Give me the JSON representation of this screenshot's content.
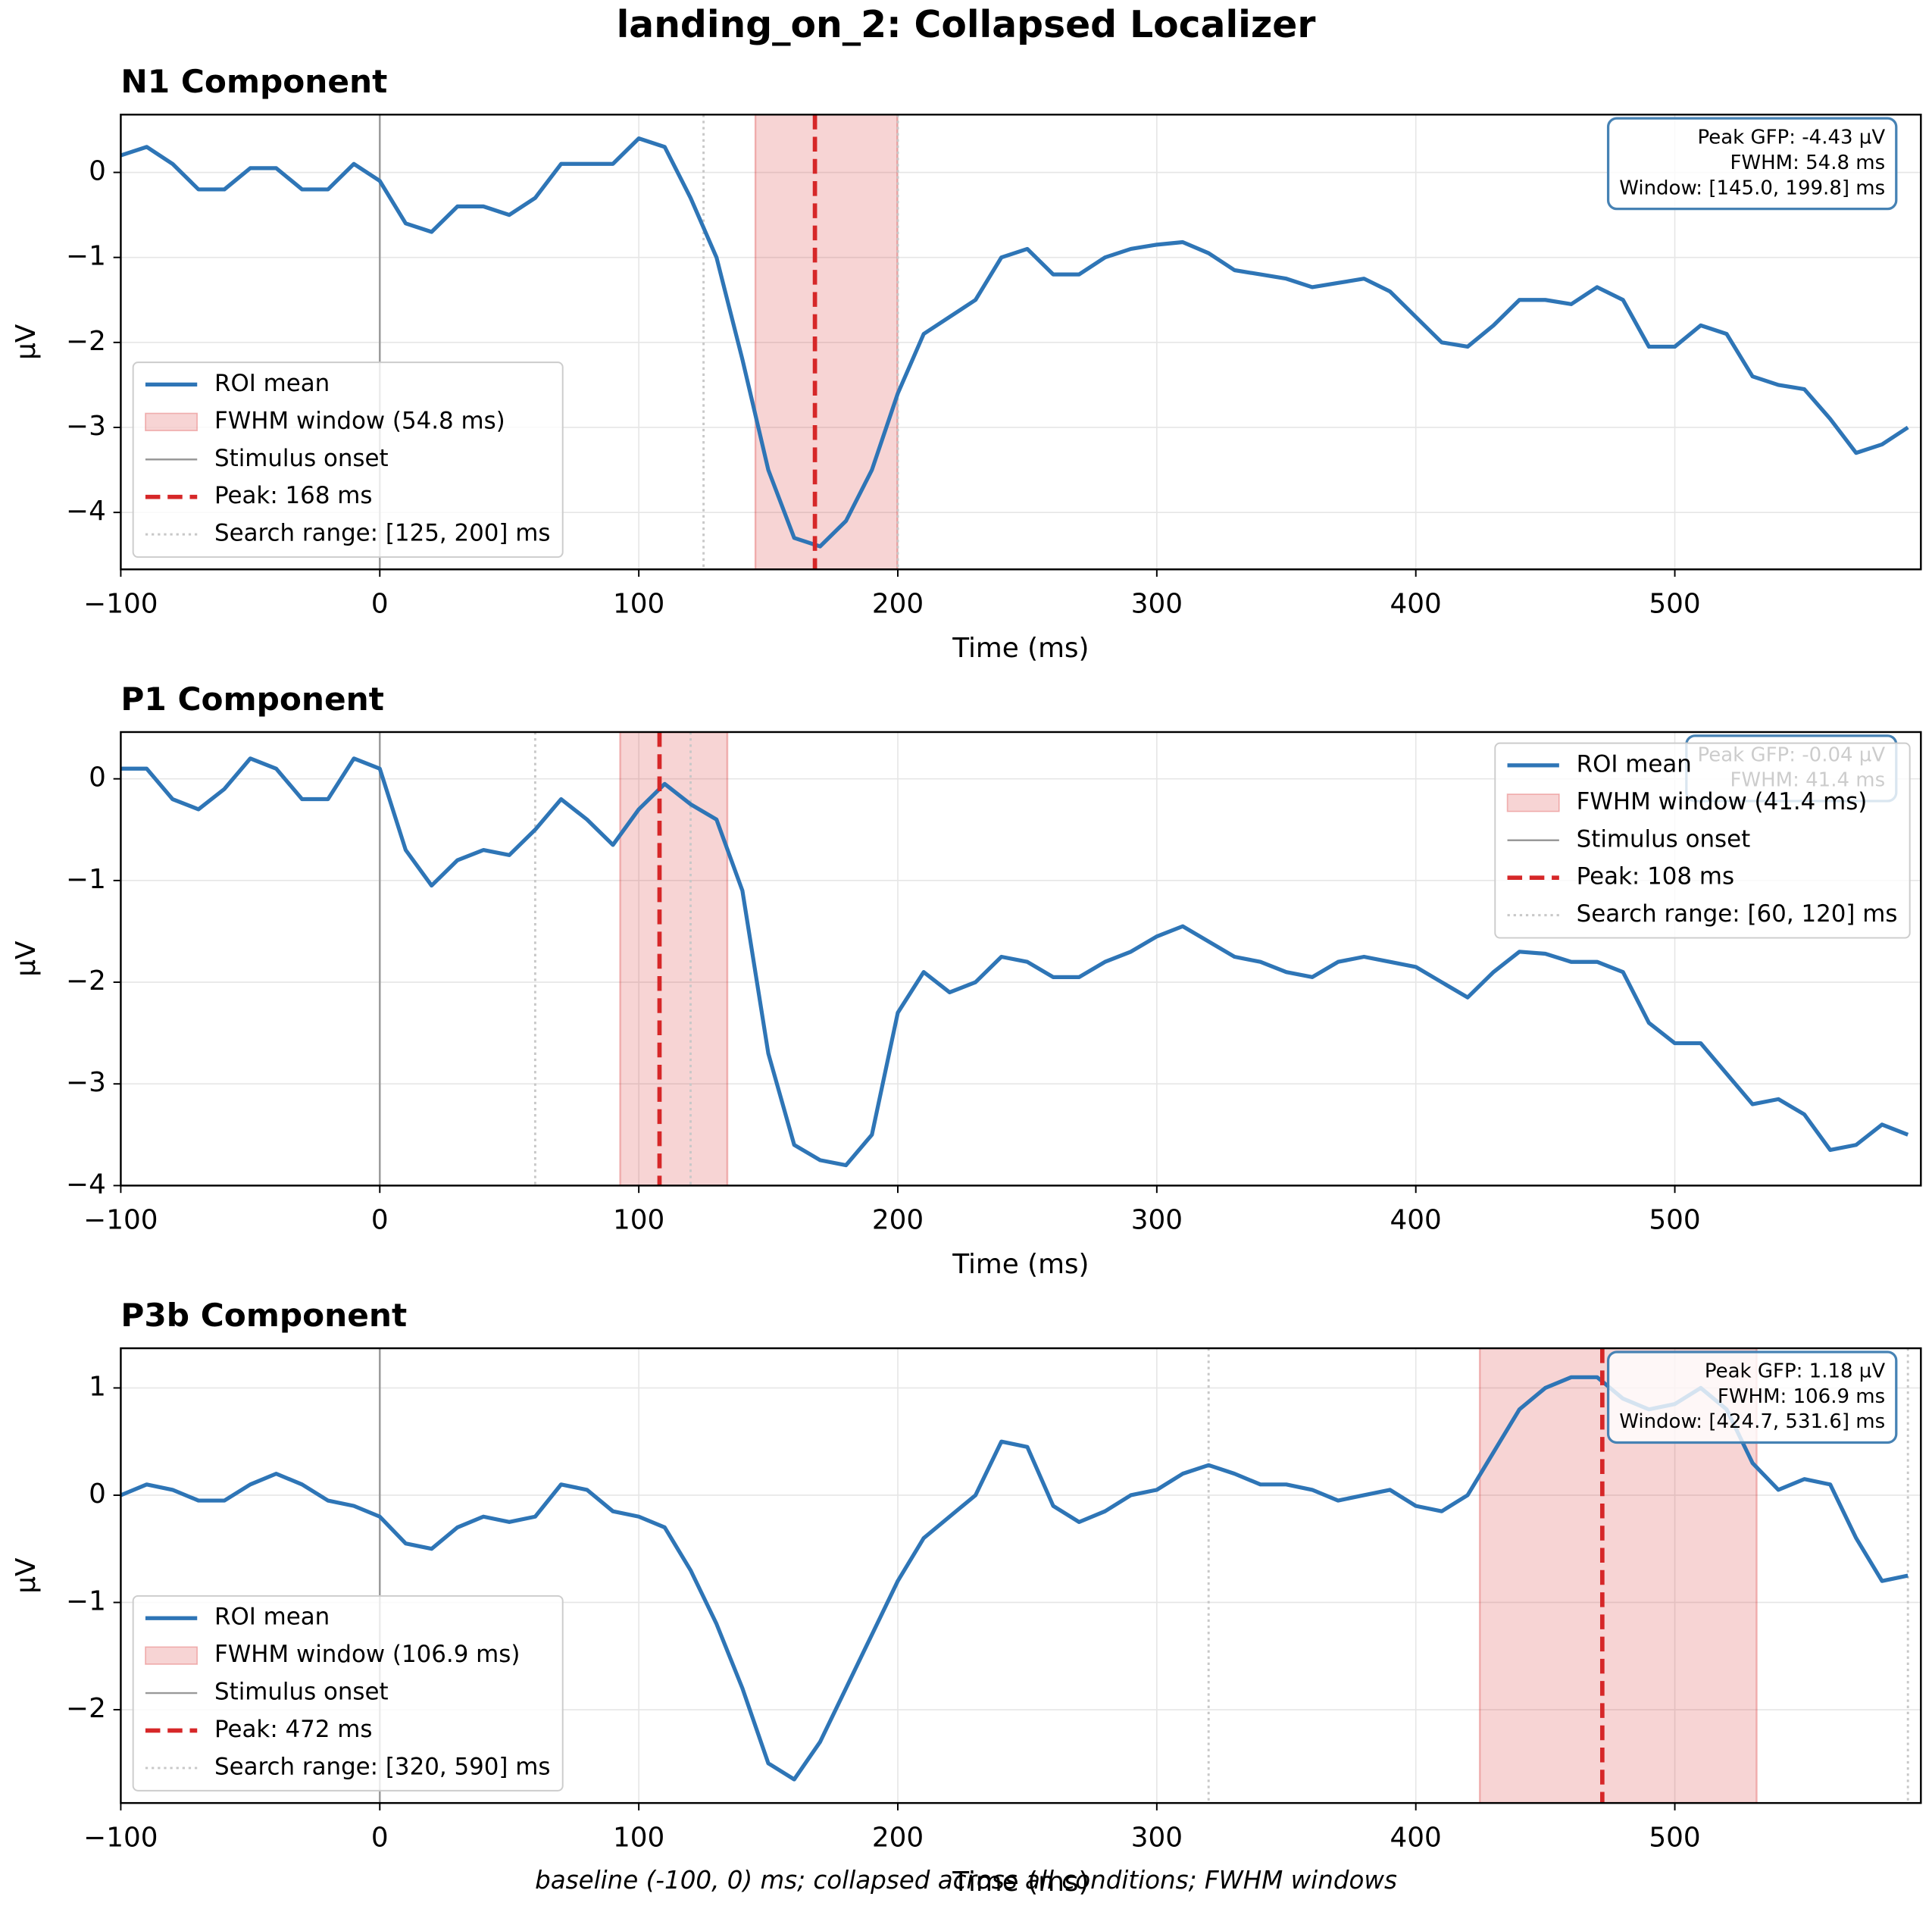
{
  "title": "landing_on_2: Collapsed Localizer",
  "footnote": "baseline (-100, 0) ms; collapsed across all conditions; FWHM windows",
  "chart_data": [
    {
      "type": "line",
      "title": "N1 Component",
      "xlabel": "Time (ms)",
      "ylabel": "µV",
      "grid": true,
      "legend_position": "lower left",
      "x": [
        -100,
        -90,
        -80,
        -70,
        -60,
        -50,
        -40,
        -30,
        -20,
        -10,
        0,
        10,
        20,
        30,
        40,
        50,
        60,
        70,
        80,
        90,
        100,
        110,
        120,
        130,
        140,
        150,
        160,
        170,
        180,
        190,
        200,
        210,
        220,
        230,
        240,
        250,
        260,
        270,
        280,
        290,
        300,
        310,
        320,
        330,
        340,
        350,
        360,
        370,
        380,
        390,
        400,
        410,
        420,
        430,
        440,
        450,
        460,
        470,
        480,
        490,
        500,
        510,
        520,
        530,
        540,
        550,
        560,
        570,
        580,
        590
      ],
      "series": [
        {
          "name": "ROI mean",
          "color": "#2e75b6",
          "values": [
            0.2,
            0.3,
            0.1,
            -0.2,
            -0.2,
            0.05,
            0.05,
            -0.2,
            -0.2,
            0.1,
            -0.1,
            -0.6,
            -0.7,
            -0.4,
            -0.4,
            -0.5,
            -0.3,
            0.1,
            0.1,
            0.1,
            0.4,
            0.3,
            -0.3,
            -1.0,
            -2.2,
            -3.5,
            -4.3,
            -4.4,
            -4.1,
            -3.5,
            -2.6,
            -1.9,
            -1.7,
            -1.5,
            -1.0,
            -0.9,
            -1.2,
            -1.2,
            -1.0,
            -0.9,
            -0.85,
            -0.82,
            -0.95,
            -1.15,
            -1.2,
            -1.25,
            -1.35,
            -1.3,
            -1.25,
            -1.4,
            -1.7,
            -2.0,
            -2.05,
            -1.8,
            -1.5,
            -1.5,
            -1.55,
            -1.35,
            -1.5,
            -2.05,
            -2.05,
            -1.8,
            -1.9,
            -2.4,
            -2.5,
            -2.55,
            -2.9,
            -3.3,
            -3.2,
            -3.0
          ]
        }
      ],
      "xlim": [
        -100,
        595
      ],
      "ylim": [
        -4.67,
        0.68
      ],
      "xticks": [
        {
          "value": -100,
          "label": "−100"
        },
        0,
        100,
        200,
        300,
        400,
        500
      ],
      "yticks": [
        {
          "value": -4,
          "label": "−4"
        },
        {
          "value": -3,
          "label": "−3"
        },
        {
          "value": -2,
          "label": "−2"
        },
        {
          "value": -1,
          "label": "−1"
        },
        0
      ],
      "fwhm": {
        "name": "FWHM window (54.8 ms)",
        "range": [
          145.0,
          199.8
        ],
        "color": "#d62728"
      },
      "onset": {
        "name": "Stimulus onset",
        "value": 0,
        "color": "#999999"
      },
      "peak": {
        "name": "Peak: 168 ms",
        "value": 168,
        "color": "#d62728"
      },
      "search": {
        "name": "Search range: [125, 200] ms",
        "range": [
          125,
          200
        ],
        "color": "#c8c8c8"
      },
      "info_box": [
        "Peak GFP: -4.43 µV",
        "FWHM: 54.8 ms",
        "Window: [145.0, 199.8] ms"
      ]
    },
    {
      "type": "line",
      "title": "P1 Component",
      "xlabel": "Time (ms)",
      "ylabel": "µV",
      "grid": true,
      "legend_position": "upper right",
      "x": [
        -100,
        -90,
        -80,
        -70,
        -60,
        -50,
        -40,
        -30,
        -20,
        -10,
        0,
        10,
        20,
        30,
        40,
        50,
        60,
        70,
        80,
        90,
        100,
        110,
        120,
        130,
        140,
        150,
        160,
        170,
        180,
        190,
        200,
        210,
        220,
        230,
        240,
        250,
        260,
        270,
        280,
        290,
        300,
        310,
        320,
        330,
        340,
        350,
        360,
        370,
        380,
        390,
        400,
        410,
        420,
        430,
        440,
        450,
        460,
        470,
        480,
        490,
        500,
        510,
        520,
        530,
        540,
        550,
        560,
        570,
        580,
        590
      ],
      "series": [
        {
          "name": "ROI mean",
          "color": "#2e75b6",
          "values": [
            0.1,
            0.1,
            -0.2,
            -0.3,
            -0.1,
            0.2,
            0.1,
            -0.2,
            -0.2,
            0.2,
            0.1,
            -0.7,
            -1.05,
            -0.8,
            -0.7,
            -0.75,
            -0.5,
            -0.2,
            -0.4,
            -0.65,
            -0.3,
            -0.05,
            -0.25,
            -0.4,
            -1.1,
            -2.7,
            -3.6,
            -3.75,
            -3.8,
            -3.5,
            -2.3,
            -1.9,
            -2.1,
            -2.0,
            -1.75,
            -1.8,
            -1.95,
            -1.95,
            -1.8,
            -1.7,
            -1.55,
            -1.45,
            -1.6,
            -1.75,
            -1.8,
            -1.9,
            -1.95,
            -1.8,
            -1.75,
            -1.8,
            -1.85,
            -2.0,
            -2.15,
            -1.9,
            -1.7,
            -1.72,
            -1.8,
            -1.8,
            -1.9,
            -2.4,
            -2.6,
            -2.6,
            -2.9,
            -3.2,
            -3.15,
            -3.3,
            -3.65,
            -3.6,
            -3.4,
            -3.5
          ]
        }
      ],
      "xlim": [
        -100,
        595
      ],
      "ylim": [
        -4,
        0.46
      ],
      "xticks": [
        {
          "value": -100,
          "label": "−100"
        },
        0,
        100,
        200,
        300,
        400,
        500
      ],
      "yticks": [
        {
          "value": -4,
          "label": "−4"
        },
        {
          "value": -3,
          "label": "−3"
        },
        {
          "value": -2,
          "label": "−2"
        },
        {
          "value": -1,
          "label": "−1"
        },
        0
      ],
      "fwhm": {
        "name": "FWHM window (41.4 ms)",
        "range": [
          92.8,
          134.2
        ],
        "color": "#d62728"
      },
      "onset": {
        "name": "Stimulus onset",
        "value": 0,
        "color": "#999999"
      },
      "peak": {
        "name": "Peak: 108 ms",
        "value": 108,
        "color": "#d62728"
      },
      "search": {
        "name": "Search range: [60, 120] ms",
        "range": [
          60,
          120
        ],
        "color": "#c8c8c8"
      },
      "info_box": [
        "Peak GFP: -0.04 µV",
        "FWHM: 41.4 ms"
      ]
    },
    {
      "type": "line",
      "title": "P3b Component",
      "xlabel": "Time (ms)",
      "ylabel": "µV",
      "grid": true,
      "legend_position": "lower left",
      "x": [
        -100,
        -90,
        -80,
        -70,
        -60,
        -50,
        -40,
        -30,
        -20,
        -10,
        0,
        10,
        20,
        30,
        40,
        50,
        60,
        70,
        80,
        90,
        100,
        110,
        120,
        130,
        140,
        150,
        160,
        170,
        180,
        190,
        200,
        210,
        220,
        230,
        240,
        250,
        260,
        270,
        280,
        290,
        300,
        310,
        320,
        330,
        340,
        350,
        360,
        370,
        380,
        390,
        400,
        410,
        420,
        430,
        440,
        450,
        460,
        470,
        480,
        490,
        500,
        510,
        520,
        530,
        540,
        550,
        560,
        570,
        580,
        590
      ],
      "series": [
        {
          "name": "ROI mean",
          "color": "#2e75b6",
          "values": [
            0.0,
            0.1,
            0.05,
            -0.05,
            -0.05,
            0.1,
            0.2,
            0.1,
            -0.05,
            -0.1,
            -0.2,
            -0.45,
            -0.5,
            -0.3,
            -0.2,
            -0.25,
            -0.2,
            0.1,
            0.05,
            -0.15,
            -0.2,
            -0.3,
            -0.7,
            -1.2,
            -1.8,
            -2.5,
            -2.65,
            -2.3,
            -1.8,
            -1.3,
            -0.8,
            -0.4,
            -0.2,
            0.0,
            0.5,
            0.45,
            -0.1,
            -0.25,
            -0.15,
            0.0,
            0.05,
            0.2,
            0.28,
            0.2,
            0.1,
            0.1,
            0.05,
            -0.05,
            0.0,
            0.05,
            -0.1,
            -0.15,
            0.0,
            0.4,
            0.8,
            1.0,
            1.1,
            1.1,
            0.9,
            0.8,
            0.85,
            1.0,
            0.8,
            0.3,
            0.05,
            0.15,
            0.1,
            -0.4,
            -0.8,
            -0.75
          ]
        }
      ],
      "xlim": [
        -100,
        595
      ],
      "ylim": [
        -2.87,
        1.37
      ],
      "xticks": [
        {
          "value": -100,
          "label": "−100"
        },
        0,
        100,
        200,
        300,
        400,
        500
      ],
      "yticks": [
        {
          "value": -2,
          "label": "−2"
        },
        {
          "value": -1,
          "label": "−1"
        },
        0,
        1
      ],
      "fwhm": {
        "name": "FWHM window (106.9 ms)",
        "range": [
          424.7,
          531.6
        ],
        "color": "#d62728"
      },
      "onset": {
        "name": "Stimulus onset",
        "value": 0,
        "color": "#999999"
      },
      "peak": {
        "name": "Peak: 472 ms",
        "value": 472,
        "color": "#d62728"
      },
      "search": {
        "name": "Search range: [320, 590] ms",
        "range": [
          320,
          590
        ],
        "color": "#c8c8c8"
      },
      "info_box": [
        "Peak GFP: 1.18 µV",
        "FWHM: 106.9 ms",
        "Window: [424.7, 531.6] ms"
      ]
    }
  ]
}
